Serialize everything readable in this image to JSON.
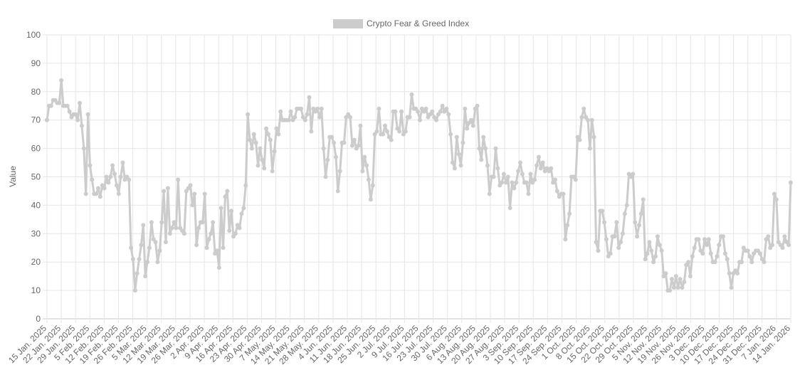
{
  "chart_data": {
    "type": "line",
    "title": "",
    "xlabel": "",
    "ylabel": "Value",
    "ylim": [
      0,
      100
    ],
    "yticks": [
      0,
      10,
      20,
      30,
      40,
      50,
      60,
      70,
      80,
      90,
      100
    ],
    "grid": true,
    "legend_position": "top",
    "x_tick_labels": [
      "15 Jan. 2025",
      "22 Jan. 2025",
      "29 Jan. 2025",
      "5 Feb. 2025",
      "12 Feb. 2025",
      "19 Feb. 2025",
      "26 Feb. 2025",
      "5 Mar. 2025",
      "12 Mar. 2025",
      "19 Mar. 2025",
      "26 Mar. 2025",
      "2 Apr. 2025",
      "9 Apr. 2025",
      "16 Apr. 2025",
      "23 Apr. 2025",
      "30 Apr. 2025",
      "7 May. 2025",
      "14 May. 2025",
      "21 May. 2025",
      "28 May. 2025",
      "4 Jun. 2025",
      "11 Jun. 2025",
      "18 Jun. 2025",
      "25 Jun. 2025",
      "2 Jul. 2025",
      "9 Jul. 2025",
      "16 Jul. 2025",
      "23 Jul. 2025",
      "30 Jul. 2025",
      "6 Aug. 2025",
      "13 Aug. 2025",
      "20 Aug. 2025",
      "27 Aug. 2025",
      "3 Sep. 2025",
      "10 Sep. 2025",
      "17 Sep. 2025",
      "24 Sep. 2025",
      "1 Oct. 2025",
      "8 Oct. 2025",
      "15 Oct. 2025",
      "22 Oct. 2025",
      "29 Oct. 2025",
      "5 Nov. 2025",
      "12 Nov. 2025",
      "19 Nov. 2025",
      "26 Nov. 2025",
      "3 Dec. 2025",
      "10 Dec. 2025",
      "17 Dec. 2025",
      "24 Dec. 2025",
      "31 Dec. 2025",
      "7 Jan. 2026",
      "14 Jan. 2026"
    ],
    "series": [
      {
        "name": "Crypto Fear & Greed Index",
        "color": "#cccccc",
        "values": [
          70,
          75,
          75,
          77,
          77,
          76,
          76,
          84,
          75,
          75,
          75,
          73,
          71,
          72,
          72,
          70,
          76,
          68,
          60,
          44,
          72,
          54,
          49,
          44,
          44,
          46,
          43,
          47,
          46,
          50,
          48,
          50,
          54,
          51,
          47,
          44,
          50,
          55,
          49,
          50,
          49,
          25,
          21,
          10,
          16,
          21,
          26,
          33,
          15,
          20,
          25,
          34,
          28,
          27,
          20,
          24,
          34,
          45,
          27,
          46,
          30,
          32,
          34,
          32,
          49,
          32,
          31,
          30,
          45,
          46,
          47,
          40,
          44,
          26,
          32,
          34,
          34,
          44,
          25,
          28,
          30,
          34,
          23,
          24,
          18,
          39,
          25,
          43,
          45,
          31,
          38,
          29,
          30,
          33,
          32,
          37,
          39,
          47,
          72,
          63,
          60,
          65,
          62,
          54,
          60,
          56,
          53,
          67,
          65,
          63,
          52,
          59,
          67,
          65,
          73,
          70,
          70,
          70,
          70,
          73,
          70,
          71,
          74,
          74,
          74,
          71,
          70,
          72,
          78,
          66,
          74,
          73,
          74,
          71,
          74,
          60,
          50,
          56,
          64,
          64,
          62,
          57,
          45,
          52,
          62,
          62,
          71,
          72,
          71,
          61,
          63,
          60,
          61,
          68,
          52,
          57,
          54,
          49,
          42,
          47,
          65,
          66,
          74,
          65,
          65,
          68,
          66,
          64,
          63,
          73,
          73,
          67,
          66,
          73,
          65,
          66,
          71,
          71,
          79,
          74,
          74,
          73,
          70,
          74,
          73,
          74,
          71,
          72,
          73,
          71,
          70,
          72,
          73,
          75,
          73,
          74,
          72,
          65,
          55,
          53,
          64,
          58,
          54,
          62,
          74,
          67,
          69,
          70,
          68,
          74,
          75,
          60,
          56,
          64,
          60,
          54,
          44,
          50,
          50,
          60,
          53,
          47,
          48,
          51,
          48,
          50,
          39,
          48,
          46,
          48,
          52,
          55,
          51,
          48,
          48,
          44,
          51,
          48,
          49,
          54,
          57,
          53,
          55,
          52,
          53,
          52,
          53,
          48,
          49,
          45,
          43,
          44,
          44,
          28,
          33,
          37,
          50,
          50,
          49,
          64,
          63,
          71,
          74,
          71,
          70,
          60,
          70,
          64,
          27,
          24,
          38,
          38,
          34,
          28,
          22,
          23,
          29,
          29,
          34,
          25,
          27,
          30,
          37,
          40,
          51,
          50,
          51,
          34,
          29,
          33,
          37,
          42,
          21,
          23,
          27,
          24,
          20,
          22,
          29,
          26,
          24,
          15,
          16,
          10,
          10,
          14,
          11,
          15,
          11,
          14,
          11,
          13,
          19,
          20,
          15,
          22,
          25,
          28,
          28,
          24,
          23,
          28,
          26,
          28,
          23,
          20,
          20,
          22,
          26,
          29,
          29,
          23,
          21,
          16,
          11,
          16,
          17,
          16,
          20,
          20,
          25,
          24,
          24,
          22,
          20,
          23,
          24,
          24,
          23,
          21,
          20,
          28,
          29,
          25,
          26,
          44,
          42,
          27,
          26,
          25,
          29,
          27,
          26,
          48
        ]
      }
    ]
  }
}
